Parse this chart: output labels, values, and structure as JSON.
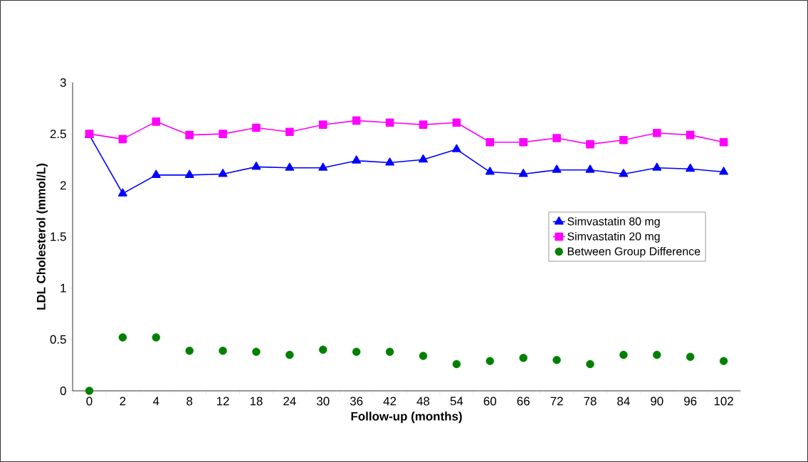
{
  "chart_data": {
    "type": "line",
    "xlabel": "Follow-up (months)",
    "ylabel": "LDL Cholesterol (mmol/L)",
    "categories": [
      "0",
      "2",
      "4",
      "8",
      "12",
      "18",
      "24",
      "30",
      "36",
      "42",
      "48",
      "54",
      "60",
      "66",
      "72",
      "78",
      "84",
      "90",
      "96",
      "102"
    ],
    "ylim": [
      0,
      3
    ],
    "yticks": [
      0,
      0.5,
      1,
      1.5,
      2,
      2.5,
      3
    ],
    "grid": false,
    "legend": "right",
    "series": [
      {
        "name": "Simvastatin 80 mg",
        "marker": "triangle",
        "color": "#0000ff",
        "values": [
          2.49,
          1.92,
          2.1,
          2.1,
          2.11,
          2.18,
          2.17,
          2.17,
          2.24,
          2.22,
          2.25,
          2.35,
          2.13,
          2.11,
          2.15,
          2.15,
          2.11,
          2.17,
          2.16,
          2.13
        ]
      },
      {
        "name": "Simvastatin 20 mg",
        "marker": "square",
        "color": "#ff00ff",
        "values": [
          2.5,
          2.45,
          2.62,
          2.49,
          2.5,
          2.56,
          2.52,
          2.59,
          2.63,
          2.61,
          2.59,
          2.61,
          2.42,
          2.42,
          2.46,
          2.4,
          2.44,
          2.51,
          2.49,
          2.42
        ]
      },
      {
        "name": "Between Group Difference",
        "type": "scatter",
        "marker": "circle",
        "color": "#008000",
        "values": [
          0,
          0.52,
          0.52,
          0.39,
          0.39,
          0.38,
          0.35,
          0.4,
          0.38,
          0.38,
          0.34,
          0.26,
          0.29,
          0.32,
          0.3,
          0.26,
          0.35,
          0.35,
          0.33,
          0.29
        ]
      }
    ]
  }
}
